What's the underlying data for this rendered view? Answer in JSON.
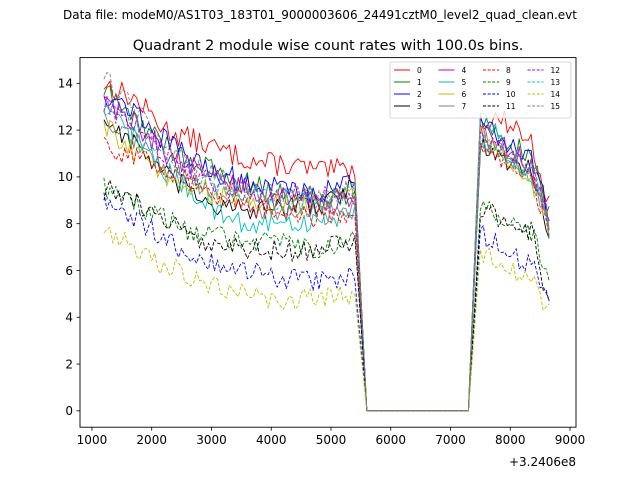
{
  "chart_data": {
    "type": "line",
    "suptitle": "Data file: modeM0/AS1T03_183T01_9000003606_24491cztM0_level2_quad_clean.evt",
    "title": "Quadrant 2 module wise count rates with 100.0s bins.",
    "xlabel": "",
    "ylabel": "",
    "x_offset_label": "+3.2406e8",
    "xlim": [
      800,
      9100
    ],
    "ylim": [
      -0.7,
      15.1
    ],
    "x_ticks": [
      1000,
      2000,
      3000,
      4000,
      5000,
      6000,
      7000,
      8000,
      9000
    ],
    "y_ticks": [
      0,
      2,
      4,
      6,
      8,
      10,
      12,
      14
    ],
    "legend_position": "top-right",
    "legend_columns": 4,
    "gap": {
      "drop_start": 5400,
      "zero_start": 5600,
      "zero_end": 7300,
      "rise_end": 7500
    },
    "segment1": {
      "x_start": 1200,
      "x_end": 5400,
      "step": 50
    },
    "segment2": {
      "x_start": 7500,
      "x_end": 8650,
      "step": 50
    },
    "series": [
      {
        "name": "0",
        "color": "#ff0000",
        "dash": "solid",
        "seg1": [
          14.0,
          13.3,
          12.0,
          11.5,
          11.0,
          10.6,
          10.5,
          10.2,
          10.4
        ],
        "seg2": [
          12.4,
          12.5,
          12.2,
          11.4,
          8.8
        ]
      },
      {
        "name": "1",
        "color": "#008000",
        "dash": "solid",
        "seg1": [
          13.7,
          12.5,
          11.3,
          10.5,
          10.0,
          9.5,
          9.3,
          9.1,
          9.3
        ],
        "seg2": [
          12.3,
          12.0,
          11.3,
          11.0,
          8.3
        ]
      },
      {
        "name": "2",
        "color": "#0000ff",
        "dash": "solid",
        "seg1": [
          13.6,
          12.8,
          11.5,
          10.6,
          10.0,
          9.6,
          9.5,
          9.3,
          10.1
        ],
        "seg2": [
          12.2,
          11.8,
          11.2,
          10.8,
          8.5
        ]
      },
      {
        "name": "3",
        "color": "#000000",
        "dash": "solid",
        "seg1": [
          12.5,
          11.4,
          10.0,
          9.2,
          8.6,
          8.5,
          8.7,
          8.9,
          9.6
        ],
        "seg2": [
          11.3,
          10.9,
          10.5,
          10.3,
          7.7
        ]
      },
      {
        "name": "4",
        "color": "#bf00bf",
        "dash": "solid",
        "seg1": [
          13.4,
          12.3,
          11.0,
          10.3,
          9.7,
          9.2,
          9.0,
          8.8,
          9.1
        ],
        "seg2": [
          12.0,
          11.5,
          11.0,
          10.5,
          8.0
        ]
      },
      {
        "name": "5",
        "color": "#00bfbf",
        "dash": "solid",
        "seg1": [
          12.8,
          11.6,
          10.2,
          9.2,
          8.2,
          7.9,
          8.0,
          8.1,
          8.6
        ],
        "seg2": [
          12.9,
          11.8,
          10.6,
          10.0,
          7.6
        ]
      },
      {
        "name": "6",
        "color": "#bfbf00",
        "dash": "solid",
        "seg1": [
          12.2,
          11.0,
          10.0,
          9.5,
          9.2,
          9.0,
          8.8,
          8.9,
          9.2
        ],
        "seg2": [
          11.9,
          11.2,
          10.4,
          9.8,
          7.9
        ]
      },
      {
        "name": "7",
        "color": "#808080",
        "dash": "solid",
        "seg1": [
          12.6,
          11.6,
          10.4,
          9.6,
          9.1,
          8.6,
          8.4,
          8.4,
          8.8
        ],
        "seg2": [
          11.7,
          11.1,
          10.7,
          10.3,
          7.8
        ]
      },
      {
        "name": "8",
        "color": "#ff0000",
        "dash": "dashed",
        "seg1": [
          11.4,
          10.9,
          10.3,
          9.6,
          9.0,
          8.6,
          8.4,
          8.3,
          8.6
        ],
        "seg2": [
          11.2,
          10.9,
          10.4,
          9.9,
          7.5
        ]
      },
      {
        "name": "9",
        "color": "#008000",
        "dash": "dashed",
        "seg1": [
          9.6,
          8.9,
          8.1,
          7.6,
          7.4,
          7.3,
          7.0,
          7.0,
          7.2
        ],
        "seg2": [
          8.9,
          8.4,
          8.0,
          7.6,
          5.5
        ]
      },
      {
        "name": "10",
        "color": "#0000ff",
        "dash": "dashed",
        "seg1": [
          8.9,
          8.1,
          7.3,
          6.6,
          6.1,
          5.8,
          5.6,
          5.5,
          5.8
        ],
        "seg2": [
          7.6,
          7.1,
          6.6,
          6.2,
          4.6
        ]
      },
      {
        "name": "11",
        "color": "#000000",
        "dash": "dashed",
        "seg1": [
          9.5,
          8.9,
          8.0,
          7.4,
          7.1,
          6.9,
          6.8,
          6.9,
          7.2
        ],
        "seg2": [
          8.6,
          8.3,
          8.0,
          7.6,
          4.5
        ]
      },
      {
        "name": "12",
        "color": "#bf00bf",
        "dash": "dashed",
        "seg1": [
          13.2,
          12.1,
          10.9,
          10.1,
          9.6,
          9.3,
          9.2,
          9.1,
          9.4
        ],
        "seg2": [
          11.8,
          11.3,
          10.9,
          10.4,
          7.9
        ]
      },
      {
        "name": "13",
        "color": "#00bfbf",
        "dash": "dashed",
        "seg1": [
          13.1,
          12.0,
          10.8,
          10.0,
          9.5,
          9.2,
          9.0,
          9.0,
          9.4
        ],
        "seg2": [
          11.6,
          11.1,
          10.7,
          10.2,
          7.8
        ]
      },
      {
        "name": "14",
        "color": "#bfbf00",
        "dash": "dashed",
        "seg1": [
          7.9,
          7.1,
          6.2,
          5.6,
          5.1,
          4.9,
          4.8,
          4.8,
          5.1
        ],
        "seg2": [
          6.8,
          6.3,
          5.9,
          5.6,
          4.2
        ]
      },
      {
        "name": "15",
        "color": "#808080",
        "dash": "dashed",
        "seg1": [
          14.4,
          12.9,
          11.3,
          10.4,
          9.8,
          9.4,
          9.2,
          9.1,
          9.5
        ],
        "seg2": [
          11.7,
          11.2,
          10.8,
          10.4,
          8.0
        ]
      }
    ]
  }
}
